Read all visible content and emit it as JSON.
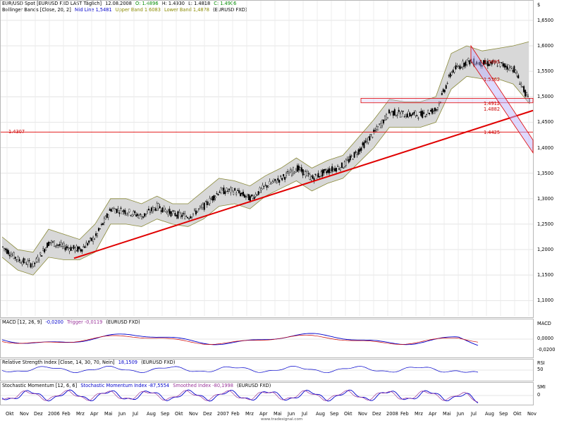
{
  "header": {
    "instrument": "EUR/USD Spot [EURUSD FXD LAST Täglich]",
    "date": "12.08.2008",
    "open": "O: 1.4896",
    "high": "H: 1.4930",
    "low": "L: 1.4818",
    "close": "C: 1.4906",
    "bollinger_title": "Bollinger Bands [Close, 20, 2]",
    "mid_line": "Mid Line 1,5481",
    "upper_band": "Upper Band 1,6083",
    "lower_band": "Lower Band 1,4878",
    "bollinger_suffix": "(EURUSD FXD)",
    "currency_symbol": "$"
  },
  "indicators": {
    "macd": {
      "title": "MACD [12, 26, 9]",
      "value": "-0,0200",
      "trigger": "Trigger -0,0119",
      "suffix": "(EURUSD FXD)",
      "axis_title": "MACD",
      "ticks": [
        "0,0000",
        "-0,0200"
      ]
    },
    "rsi": {
      "title": "Relative Strength Index [Close, 14, 30, 70, Nein]",
      "value": "18,1509",
      "suffix": "(EURUSD FXD)",
      "axis_title": "RSI",
      "ticks": [
        "50"
      ]
    },
    "smi": {
      "title": "Stochastic Momentum [12, 6, 6]",
      "index": "Stochastic Momentum Index -87,5554",
      "smoothed": "Smoothed Index -80,1998",
      "suffix": "(EURUSD FXD)",
      "axis_title": "SMI",
      "ticks": [
        "0"
      ]
    }
  },
  "annotations": {
    "level_left": "1.4307",
    "labels": [
      "1.5685",
      "1.5362",
      "1.4912",
      "1.4882",
      "1.4425"
    ]
  },
  "footer": "www.tradesignal.com",
  "colors": {
    "candle": "#000000",
    "band_fill": "#d8d8d8",
    "band_line": "#8a8a3a",
    "trend": "#e00000",
    "macd": "#0000cc",
    "trigger": "#cc0000",
    "rsi": "#0000cc",
    "smi": "#0000cc",
    "smi_smooth": "#993399"
  },
  "chart_data": {
    "type": "line",
    "title": "EUR/USD Spot [EURUSD FXD LAST Täglich]",
    "y_ticks": [
      "1,6500",
      "1,6000",
      "1,5500",
      "1,5000",
      "1,4500",
      "1,4000",
      "1,3500",
      "1,3000",
      "1,2500",
      "1,2000",
      "1,1500",
      "1,1000"
    ],
    "ylim": [
      1.07,
      1.665
    ],
    "x_labels": [
      "Okt",
      "Nov",
      "Dez",
      "2006",
      "Feb",
      "Mrz",
      "Apr",
      "Mai",
      "Jun",
      "Jul",
      "Aug",
      "Sep",
      "Okt",
      "Nov",
      "Dez",
      "2007",
      "Feb",
      "Mrz",
      "Apr",
      "Mai",
      "Jun",
      "Jul",
      "Aug",
      "Sep",
      "Okt",
      "Nov",
      "Dez",
      "2008",
      "Feb",
      "Mrz",
      "Apr",
      "Mai",
      "Jun",
      "Jul",
      "Aug",
      "Sep",
      "Okt",
      "Nov"
    ],
    "x": [
      0,
      1,
      2,
      3,
      4,
      5,
      6,
      7,
      8,
      9,
      10,
      11,
      12,
      13,
      14,
      15,
      16,
      17,
      18,
      19,
      20,
      21,
      22,
      23,
      24,
      25,
      26,
      27,
      28,
      29,
      30,
      31,
      32,
      33,
      34
    ],
    "series": [
      {
        "name": "Close",
        "values": [
          1.205,
          1.18,
          1.17,
          1.215,
          1.205,
          1.2,
          1.225,
          1.28,
          1.275,
          1.265,
          1.285,
          1.27,
          1.265,
          1.285,
          1.315,
          1.315,
          1.3,
          1.325,
          1.34,
          1.36,
          1.34,
          1.355,
          1.365,
          1.395,
          1.43,
          1.47,
          1.465,
          1.465,
          1.475,
          1.55,
          1.57,
          1.565,
          1.565,
          1.555,
          1.49
        ]
      },
      {
        "name": "Upper Band",
        "values": [
          1.225,
          1.2,
          1.195,
          1.24,
          1.23,
          1.22,
          1.25,
          1.3,
          1.3,
          1.29,
          1.305,
          1.29,
          1.29,
          1.315,
          1.34,
          1.335,
          1.325,
          1.345,
          1.36,
          1.38,
          1.36,
          1.375,
          1.385,
          1.42,
          1.455,
          1.495,
          1.49,
          1.49,
          1.5,
          1.585,
          1.6,
          1.59,
          1.595,
          1.6,
          1.608
        ]
      },
      {
        "name": "Lower Band",
        "values": [
          1.185,
          1.16,
          1.15,
          1.185,
          1.18,
          1.18,
          1.195,
          1.25,
          1.25,
          1.245,
          1.26,
          1.25,
          1.245,
          1.26,
          1.285,
          1.29,
          1.28,
          1.305,
          1.32,
          1.335,
          1.315,
          1.33,
          1.34,
          1.37,
          1.4,
          1.44,
          1.44,
          1.44,
          1.45,
          1.515,
          1.54,
          1.535,
          1.535,
          1.525,
          1.488
        ]
      }
    ]
  }
}
